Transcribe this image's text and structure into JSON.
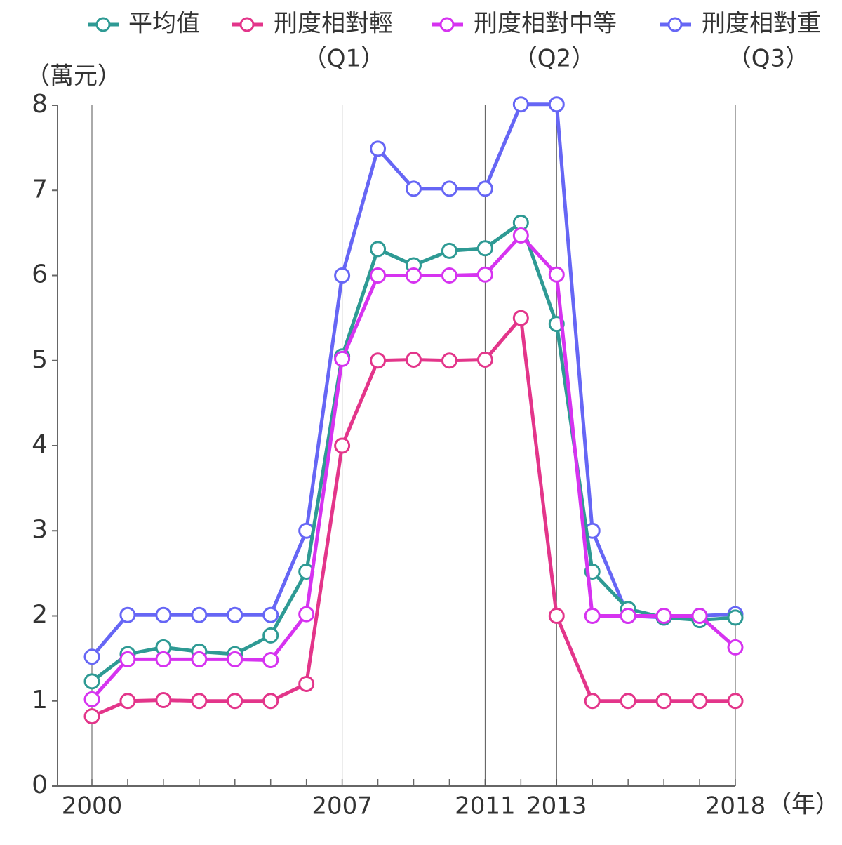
{
  "chart_data": {
    "type": "line",
    "y_label": "（萬元）",
    "x_label": "（年）",
    "x": [
      2000,
      2001,
      2002,
      2003,
      2004,
      2005,
      2006,
      2007,
      2008,
      2009,
      2010,
      2011,
      2012,
      2013,
      2014,
      2015,
      2016,
      2017,
      2018
    ],
    "xlim": [
      2000,
      2018
    ],
    "xticks": [
      2000,
      2007,
      2011,
      2013,
      2018
    ],
    "ylim": [
      0,
      8
    ],
    "yticks": [
      0,
      1,
      2,
      3,
      4,
      5,
      6,
      7,
      8
    ],
    "series": [
      {
        "name": "平均值",
        "color": "#2e9a94",
        "values": [
          1.23,
          1.55,
          1.63,
          1.58,
          1.55,
          1.77,
          2.52,
          5.05,
          6.31,
          6.12,
          6.29,
          6.32,
          6.62,
          5.43,
          2.52,
          2.08,
          1.98,
          1.95,
          1.98
        ]
      },
      {
        "name": "刑度相對輕",
        "quartile": "（Q1）",
        "color": "#e3358a",
        "values": [
          0.82,
          1.0,
          1.01,
          1.0,
          1.0,
          1.0,
          1.2,
          4.0,
          5.0,
          5.01,
          5.0,
          5.01,
          5.5,
          2.0,
          1.0,
          1.0,
          1.0,
          1.0,
          1.0
        ]
      },
      {
        "name": "刑度相對中等",
        "quartile": "（Q2）",
        "color": "#d633f0",
        "values": [
          1.02,
          1.49,
          1.49,
          1.49,
          1.49,
          1.48,
          2.02,
          5.02,
          6.0,
          6.0,
          6.0,
          6.01,
          6.47,
          6.01,
          2.0,
          2.0,
          2.0,
          2.0,
          1.63
        ]
      },
      {
        "name": "刑度相對重",
        "quartile": "（Q3）",
        "color": "#6666f5",
        "values": [
          1.52,
          2.01,
          2.01,
          2.01,
          2.01,
          2.01,
          3.0,
          6.0,
          7.49,
          7.02,
          7.02,
          7.02,
          8.01,
          8.01,
          3.0,
          2.0,
          1.98,
          2.0,
          2.02
        ]
      }
    ]
  }
}
